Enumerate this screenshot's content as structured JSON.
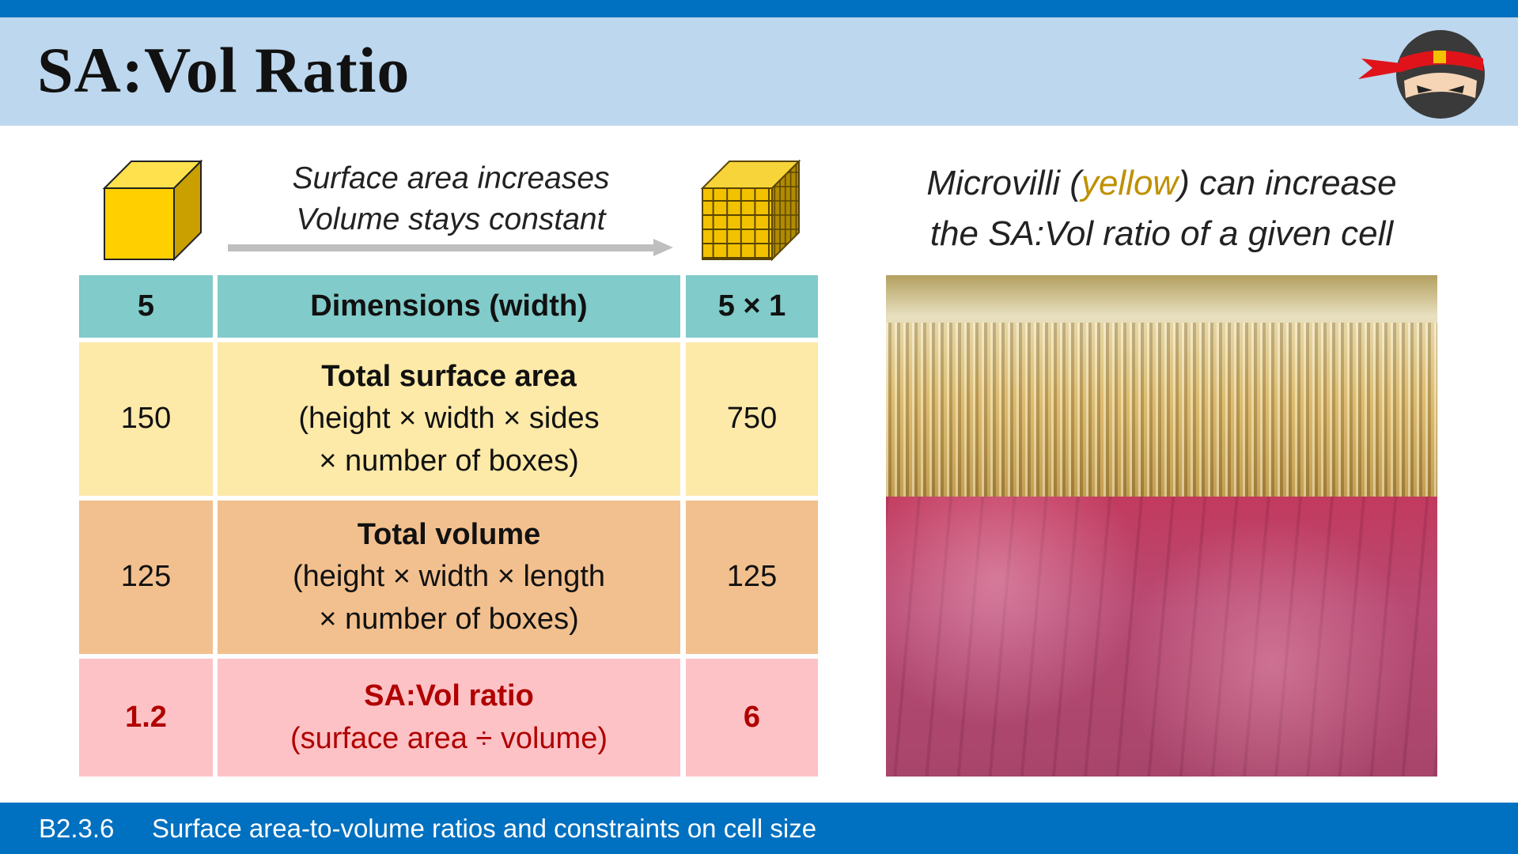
{
  "header": {
    "title": "SA:Vol Ratio"
  },
  "arrow_caption": [
    "Surface area increases",
    "Volume stays constant"
  ],
  "table": {
    "rows": [
      {
        "left": "5",
        "title": "Dimensions (width)",
        "detail": [],
        "right": "5 × 1"
      },
      {
        "left": "150",
        "title": "Total surface area",
        "detail": [
          "(height × width × sides",
          "× number of boxes)"
        ],
        "right": "750"
      },
      {
        "left": "125",
        "title": "Total volume",
        "detail": [
          "(height × width × length",
          "× number of boxes)"
        ],
        "right": "125"
      },
      {
        "left": "1.2",
        "title": "SA:Vol ratio",
        "detail": [
          "(surface area ÷ volume)"
        ],
        "right": "6"
      }
    ]
  },
  "caption": {
    "line1": [
      "Microvilli (",
      "yellow",
      ") can increase"
    ],
    "line2": "the SA:Vol ratio of a given cell"
  },
  "footer": {
    "code": "B2.3.6",
    "text": "Surface area-to-volume ratios and constraints on cell size"
  }
}
